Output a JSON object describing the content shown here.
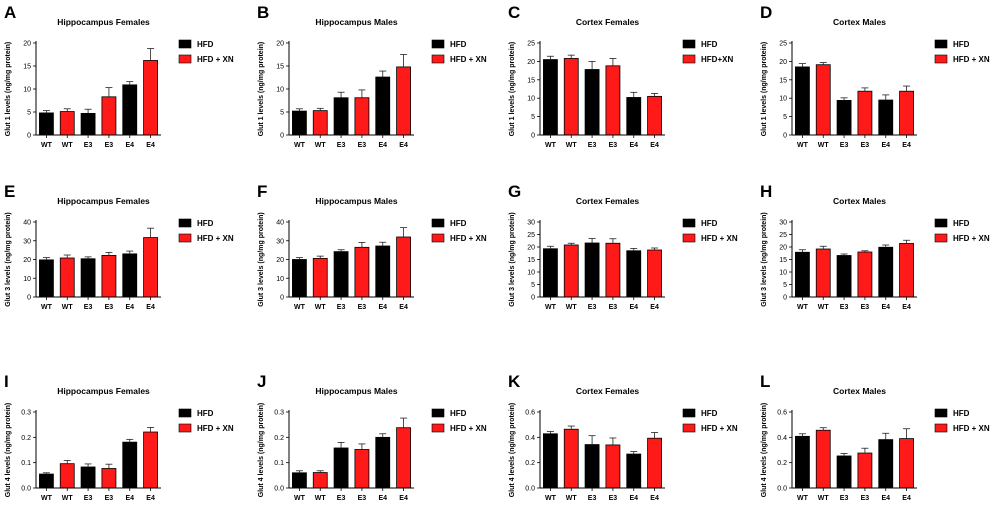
{
  "figure": {
    "colors": {
      "HFD": "#000000",
      "HFD_XN": "#ff1a1a",
      "axis": "#000000",
      "error_bar": "#222222"
    }
  },
  "chart_data": [
    {
      "id": "A",
      "type": "bar",
      "title": "Hippocampus Females",
      "ylabel": "Glut 1 levels (ng/mg protein)",
      "categories": [
        "WT",
        "WT",
        "E3",
        "E3",
        "E4",
        "E4"
      ],
      "groups": [
        "HFD",
        "HFD_XN",
        "HFD",
        "HFD_XN",
        "HFD",
        "HFD_XN"
      ],
      "values": [
        4.8,
        5.1,
        4.7,
        8.3,
        10.9,
        16.2
      ],
      "errors": [
        0.5,
        0.6,
        0.9,
        2.0,
        0.7,
        2.6
      ],
      "ylim": [
        0,
        20
      ],
      "yticks": [
        "0",
        "5",
        "10",
        "15",
        "20"
      ],
      "legend": [
        "HFD",
        "HFD + XN"
      ],
      "legend_position": "right"
    },
    {
      "id": "B",
      "type": "bar",
      "title": "Hippocampus Males",
      "ylabel": "Glut 1 levels (ng/mg protein)",
      "categories": [
        "WT",
        "WT",
        "E3",
        "E3",
        "E4",
        "E4"
      ],
      "groups": [
        "HFD",
        "HFD_XN",
        "HFD",
        "HFD_XN",
        "HFD",
        "HFD_XN"
      ],
      "values": [
        5.2,
        5.3,
        8.1,
        8.1,
        12.6,
        14.8
      ],
      "errors": [
        0.5,
        0.5,
        1.2,
        1.7,
        1.3,
        2.7
      ],
      "ylim": [
        0,
        20
      ],
      "yticks": [
        "0",
        "5",
        "10",
        "15",
        "20"
      ],
      "legend": [
        "HFD",
        "HFD + XN"
      ],
      "legend_position": "right"
    },
    {
      "id": "C",
      "type": "bar",
      "title": "Cortex Females",
      "ylabel": "Glut 1 levels (ng/mg protein)",
      "categories": [
        "WT",
        "WT",
        "E3",
        "E3",
        "E4",
        "E4"
      ],
      "groups": [
        "HFD",
        "HFD_XN",
        "HFD",
        "HFD_XN",
        "HFD",
        "HFD_XN"
      ],
      "values": [
        20.5,
        20.8,
        17.8,
        18.8,
        10.2,
        10.5
      ],
      "errors": [
        0.9,
        0.9,
        2.2,
        2.0,
        1.4,
        0.8
      ],
      "ylim": [
        0,
        25
      ],
      "yticks": [
        "0",
        "5",
        "10",
        "15",
        "20",
        "25"
      ],
      "legend": [
        "HFD",
        "HFD+XN"
      ],
      "legend_position": "right"
    },
    {
      "id": "D",
      "type": "bar",
      "title": "Cortex Males",
      "ylabel": "Glut 1 levels (ng/mg protein)",
      "categories": [
        "WT",
        "WT",
        "E3",
        "E3",
        "E4",
        "E4"
      ],
      "groups": [
        "HFD",
        "HFD_XN",
        "HFD",
        "HFD_XN",
        "HFD",
        "HFD_XN"
      ],
      "values": [
        18.5,
        19.1,
        9.4,
        11.9,
        9.5,
        11.9
      ],
      "errors": [
        0.9,
        0.6,
        0.7,
        0.9,
        1.4,
        1.4
      ],
      "ylim": [
        0,
        25
      ],
      "yticks": [
        "0",
        "5",
        "10",
        "15",
        "20",
        "25"
      ],
      "legend": [
        "HFD",
        "HFD + XN"
      ],
      "legend_position": "right"
    },
    {
      "id": "E",
      "type": "bar",
      "title": "Hippocampus Females",
      "ylabel": "Glut 3 levels (ng/mg protein)",
      "categories": [
        "WT",
        "WT",
        "E3",
        "E3",
        "E4",
        "E4"
      ],
      "groups": [
        "HFD",
        "HFD_XN",
        "HFD",
        "HFD_XN",
        "HFD",
        "HFD_XN"
      ],
      "values": [
        19.8,
        20.8,
        20.4,
        22.2,
        23.0,
        31.7
      ],
      "errors": [
        1.2,
        1.6,
        1.0,
        1.6,
        1.5,
        5.0
      ],
      "ylim": [
        0,
        40
      ],
      "yticks": [
        "0",
        "10",
        "20",
        "30",
        "40"
      ],
      "legend": [
        "HFD",
        "HFD + XN"
      ],
      "legend_position": "right"
    },
    {
      "id": "F",
      "type": "bar",
      "title": "Hippocampus Males",
      "ylabel": "Glut 3 levels (ng/mg protein)",
      "categories": [
        "WT",
        "WT",
        "E3",
        "E3",
        "E4",
        "E4"
      ],
      "groups": [
        "HFD",
        "HFD_XN",
        "HFD",
        "HFD_XN",
        "HFD",
        "HFD_XN"
      ],
      "values": [
        20.0,
        20.6,
        24.2,
        26.5,
        27.2,
        32.0
      ],
      "errors": [
        1.0,
        1.2,
        1.0,
        2.6,
        2.0,
        5.0
      ],
      "ylim": [
        0,
        40
      ],
      "yticks": [
        "0",
        "10",
        "20",
        "30",
        "40"
      ],
      "legend": [
        "HFD",
        "HFD + XN"
      ],
      "legend_position": "right"
    },
    {
      "id": "G",
      "type": "bar",
      "title": "Cortex Females",
      "ylabel": "Glut 3 levels (ng/mg protein)",
      "categories": [
        "WT",
        "WT",
        "E3",
        "E3",
        "E4",
        "E4"
      ],
      "groups": [
        "HFD",
        "HFD_XN",
        "HFD",
        "HFD_XN",
        "HFD",
        "HFD_XN"
      ],
      "values": [
        19.3,
        20.8,
        21.6,
        21.5,
        18.5,
        18.8
      ],
      "errors": [
        1.0,
        0.7,
        1.8,
        1.8,
        0.9,
        0.8
      ],
      "ylim": [
        0,
        30
      ],
      "yticks": [
        "0",
        "5",
        "10",
        "15",
        "20",
        "25",
        "30"
      ],
      "legend": [
        "HFD",
        "HFD + XN"
      ],
      "legend_position": "right"
    },
    {
      "id": "H",
      "type": "bar",
      "title": "Cortex Males",
      "ylabel": "Glut 3 levels (ng/mg protein)",
      "categories": [
        "WT",
        "WT",
        "E3",
        "E3",
        "E4",
        "E4"
      ],
      "groups": [
        "HFD",
        "HFD_XN",
        "HFD",
        "HFD_XN",
        "HFD",
        "HFD_XN"
      ],
      "values": [
        17.9,
        19.2,
        16.6,
        18.0,
        19.9,
        21.4
      ],
      "errors": [
        1.0,
        1.1,
        0.6,
        0.5,
        0.9,
        1.3
      ],
      "ylim": [
        0,
        30
      ],
      "yticks": [
        "0",
        "5",
        "10",
        "15",
        "20",
        "25",
        "30"
      ],
      "legend": [
        "HFD",
        "HFD + XN"
      ],
      "legend_position": "right"
    },
    {
      "id": "I",
      "type": "bar",
      "title": "Hippocampus Females",
      "ylabel": "Glut 4 levels (ng/mg protein)",
      "categories": [
        "WT",
        "WT",
        "E3",
        "E3",
        "E4",
        "E4"
      ],
      "groups": [
        "HFD",
        "HFD_XN",
        "HFD",
        "HFD_XN",
        "HFD",
        "HFD_XN"
      ],
      "values": [
        0.055,
        0.096,
        0.083,
        0.077,
        0.181,
        0.221
      ],
      "errors": [
        0.005,
        0.013,
        0.012,
        0.017,
        0.011,
        0.018
      ],
      "ylim": [
        0,
        0.3
      ],
      "yticks": [
        "0.0",
        "0.1",
        "0.2",
        "0.3"
      ],
      "legend": [
        "HFD",
        "HFD + XN"
      ],
      "legend_position": "right"
    },
    {
      "id": "J",
      "type": "bar",
      "title": "Hippocampus Males",
      "ylabel": "Glut 4 levels (ng/mg protein)",
      "categories": [
        "WT",
        "WT",
        "E3",
        "E3",
        "E4",
        "E4"
      ],
      "groups": [
        "HFD",
        "HFD_XN",
        "HFD",
        "HFD_XN",
        "HFD",
        "HFD_XN"
      ],
      "values": [
        0.06,
        0.061,
        0.158,
        0.152,
        0.2,
        0.238
      ],
      "errors": [
        0.008,
        0.007,
        0.022,
        0.022,
        0.014,
        0.038
      ],
      "ylim": [
        0,
        0.3
      ],
      "yticks": [
        "0.0",
        "0.1",
        "0.2",
        "0.3"
      ],
      "legend": [
        "HFD",
        "HFD + XN"
      ],
      "legend_position": "right"
    },
    {
      "id": "K",
      "type": "bar",
      "title": "Cortex Females",
      "ylabel": "Glut 4 levels (ng/mg protein)",
      "categories": [
        "WT",
        "WT",
        "E3",
        "E3",
        "E4",
        "E4"
      ],
      "groups": [
        "HFD",
        "HFD_XN",
        "HFD",
        "HFD_XN",
        "HFD",
        "HFD_XN"
      ],
      "values": [
        0.428,
        0.464,
        0.343,
        0.34,
        0.268,
        0.393
      ],
      "errors": [
        0.018,
        0.025,
        0.07,
        0.055,
        0.02,
        0.045
      ],
      "ylim": [
        0,
        0.6
      ],
      "yticks": [
        "0.0",
        "0.2",
        "0.4",
        "0.6"
      ],
      "legend": [
        "HFD",
        "HFD + XN"
      ],
      "legend_position": "right"
    },
    {
      "id": "L",
      "type": "bar",
      "title": "Cortex Males",
      "ylabel": "Glut 4 levels (ng/mg protein)",
      "categories": [
        "WT",
        "WT",
        "E3",
        "E3",
        "E4",
        "E4"
      ],
      "groups": [
        "HFD",
        "HFD_XN",
        "HFD",
        "HFD_XN",
        "HFD",
        "HFD_XN"
      ],
      "values": [
        0.408,
        0.456,
        0.253,
        0.276,
        0.382,
        0.39
      ],
      "errors": [
        0.02,
        0.02,
        0.02,
        0.038,
        0.05,
        0.078
      ],
      "ylim": [
        0,
        0.6
      ],
      "yticks": [
        "0.0",
        "0.2",
        "0.4",
        "0.6"
      ],
      "legend": [
        "HFD",
        "HFD + XN"
      ],
      "legend_position": "right"
    }
  ]
}
